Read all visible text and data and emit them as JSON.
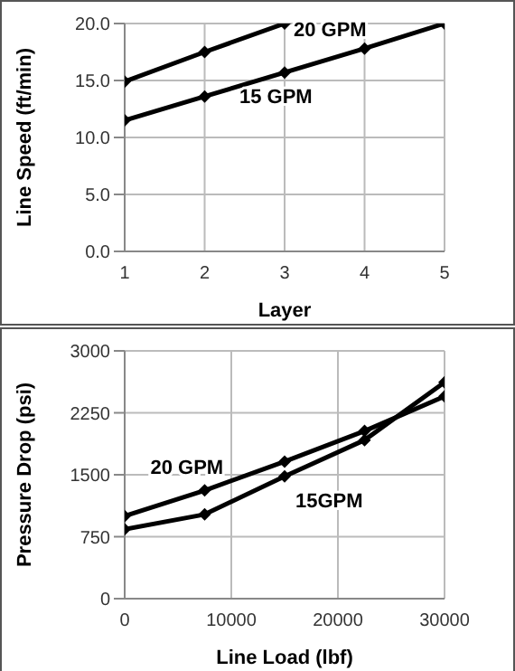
{
  "chart_data": [
    {
      "type": "line",
      "xlabel": "Layer",
      "ylabel": "Line  Speed (ft/min)",
      "x": [
        1,
        2,
        3,
        4,
        5
      ],
      "xlim": [
        1,
        5
      ],
      "xticks": [
        1,
        2,
        3,
        4,
        5
      ],
      "ylim": [
        0,
        20
      ],
      "yticks": [
        {
          "value": 0,
          "label": "0.0"
        },
        {
          "value": 5,
          "label": "5.0"
        },
        {
          "value": 10,
          "label": "10.0"
        },
        {
          "value": 15,
          "label": "15.0"
        },
        {
          "value": 20,
          "label": "20.0"
        }
      ],
      "grid": true,
      "marker": "diamond",
      "series": [
        {
          "name": "20 GPM",
          "color": "#000000",
          "values": [
            14.9,
            17.5,
            20.0,
            null,
            null
          ]
        },
        {
          "name": "15 GPM",
          "color": "#000000",
          "values": [
            11.5,
            13.6,
            15.7,
            17.8,
            20.0
          ]
        }
      ]
    },
    {
      "type": "line",
      "xlabel": "Line Load (lbf)",
      "ylabel": "Pressure Drop  (psi)",
      "x": [
        0,
        7500,
        15000,
        22500,
        30000
      ],
      "xlim": [
        0,
        30000
      ],
      "xticks": [
        0,
        10000,
        20000,
        30000
      ],
      "ylim": [
        0,
        3000
      ],
      "yticks": [
        0,
        750,
        1500,
        2250,
        3000
      ],
      "grid": true,
      "marker": "diamond",
      "series": [
        {
          "name": "20 GPM",
          "color": "#000000",
          "values": [
            1000,
            1310,
            1660,
            2030,
            2450
          ]
        },
        {
          "name": "15GPM",
          "color": "#000000",
          "values": [
            840,
            1020,
            1480,
            1920,
            2620
          ]
        }
      ]
    }
  ]
}
